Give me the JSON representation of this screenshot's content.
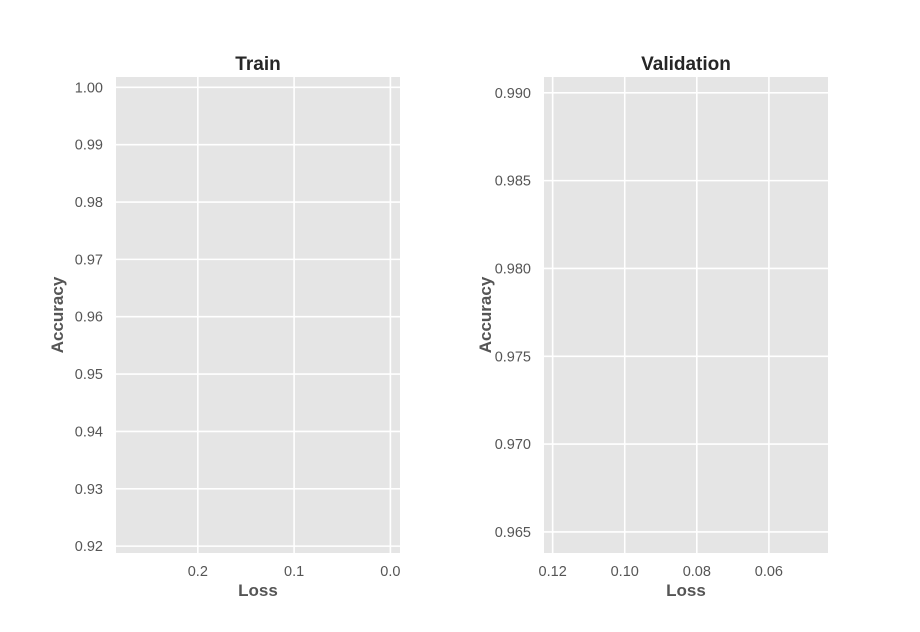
{
  "chart_data": [
    {
      "type": "line",
      "title": "Train",
      "xlabel": "Loss",
      "ylabel": "Accuracy",
      "x_inverted": true,
      "xlim": [
        0.285,
        -0.01
      ],
      "ylim": [
        0.9188,
        1.0018
      ],
      "xticks": [
        0.2,
        0.1,
        0.0
      ],
      "xtick_labels": [
        "0.2",
        "0.1",
        "0.0"
      ],
      "yticks": [
        0.92,
        0.93,
        0.94,
        0.95,
        0.96,
        0.97,
        0.98,
        0.99,
        1.0
      ],
      "ytick_labels": [
        "0.92",
        "0.93",
        "0.94",
        "0.95",
        "0.96",
        "0.97",
        "0.98",
        "0.99",
        "1.00"
      ],
      "grid": true,
      "background": "#e5e5e5",
      "series": []
    },
    {
      "type": "line",
      "title": "Validation",
      "xlabel": "Loss",
      "ylabel": "Accuracy",
      "x_inverted": true,
      "xlim": [
        0.1224,
        0.0436
      ],
      "ylim": [
        0.9638,
        0.9909
      ],
      "xticks": [
        0.12,
        0.1,
        0.08,
        0.06
      ],
      "xtick_labels": [
        "0.12",
        "0.10",
        "0.08",
        "0.06"
      ],
      "yticks": [
        0.965,
        0.97,
        0.975,
        0.98,
        0.985,
        0.99
      ],
      "ytick_labels": [
        "0.965",
        "0.970",
        "0.975",
        "0.980",
        "0.985",
        "0.990"
      ],
      "grid": true,
      "background": "#e5e5e5",
      "series": []
    }
  ]
}
